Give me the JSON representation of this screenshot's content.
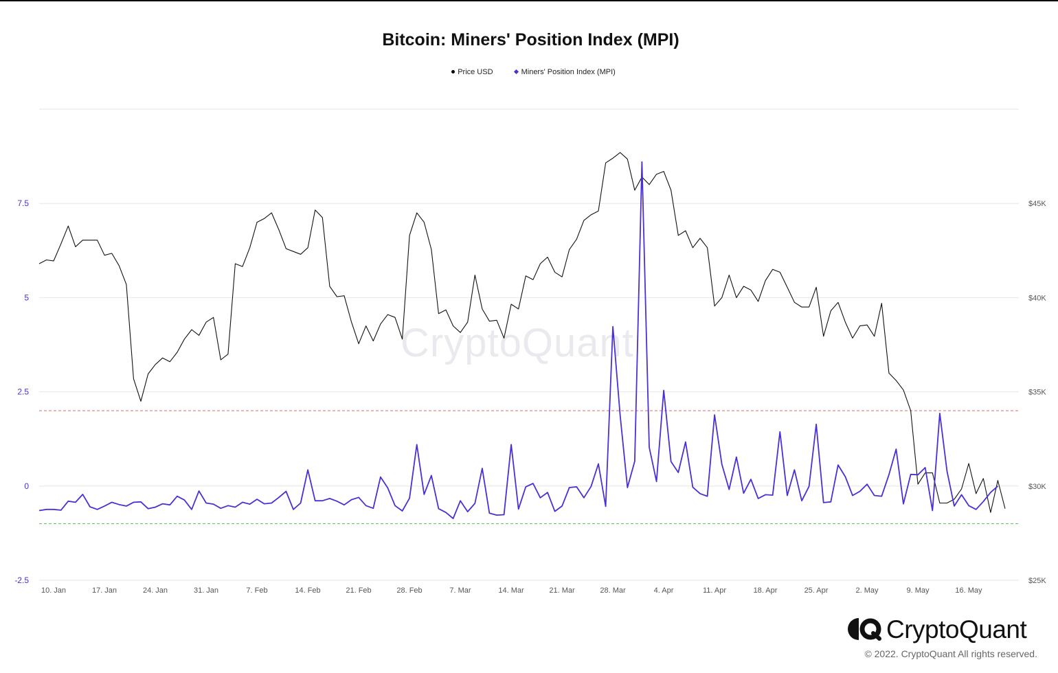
{
  "title": "Bitcoin: Miners' Position Index (MPI)",
  "legend": {
    "price_label": "Price USD",
    "mpi_label": "Miners' Position Index (MPI)"
  },
  "watermark": "CryptoQuant",
  "footer": {
    "logo_text": "CryptoQuant",
    "copyright": "© 2022. CryptoQuant All rights reserved."
  },
  "colors": {
    "price_line": "#111111",
    "mpi_line": "#4a2fd6",
    "left_axis_text": "#4a2fd6",
    "upper_threshold": "#e06666",
    "lower_threshold": "#57bb57",
    "grid": "#e6e6e6"
  },
  "chart_data": {
    "type": "line",
    "x_start_label": "10. Jan",
    "x_end_label": "16. May",
    "x_tick_labels": [
      "10. Jan",
      "17. Jan",
      "24. Jan",
      "31. Jan",
      "7. Feb",
      "14. Feb",
      "21. Feb",
      "28. Feb",
      "7. Mar",
      "14. Mar",
      "21. Mar",
      "28. Mar",
      "4. Apr",
      "11. Apr",
      "18. Apr",
      "25. Apr",
      "2. May",
      "9. May",
      "16. May"
    ],
    "y_left": {
      "ticks": [
        -2.5,
        0,
        2.5,
        5,
        7.5
      ],
      "tick_labels": [
        "-2.5",
        "0",
        "2.5",
        "5",
        "7.5"
      ],
      "range": [
        -2.5,
        10
      ]
    },
    "y_right": {
      "ticks": [
        25000,
        30000,
        35000,
        40000,
        45000
      ],
      "tick_labels": [
        "$25K",
        "$30K",
        "$35K",
        "$40K",
        "$45K"
      ],
      "range": [
        25000,
        50000
      ]
    },
    "thresholds": {
      "upper": 2,
      "lower": -1
    },
    "series": [
      {
        "name": "Price USD",
        "axis": "right",
        "values": [
          41800,
          42000,
          41950,
          42850,
          43800,
          42700,
          43050,
          43050,
          43050,
          42250,
          42350,
          41700,
          40700,
          35700,
          34500,
          35950,
          36450,
          36800,
          36600,
          37100,
          37800,
          38300,
          38000,
          38700,
          38950,
          36700,
          37000,
          41800,
          41650,
          42650,
          44000,
          44200,
          44500,
          43600,
          42600,
          42450,
          42300,
          42650,
          44650,
          44250,
          40600,
          40050,
          40100,
          38700,
          37550,
          38500,
          37700,
          38600,
          39100,
          38950,
          37800,
          43300,
          44500,
          44000,
          42550,
          39150,
          39350,
          38500,
          38150,
          38700,
          41200,
          39400,
          38750,
          38800,
          37850,
          39650,
          39400,
          41150,
          40950,
          41800,
          42150,
          41350,
          41100,
          42550,
          43100,
          44100,
          44400,
          44600,
          47150,
          47400,
          47700,
          47350,
          45700,
          46400,
          46000,
          46550,
          46700,
          45700,
          43300,
          43550,
          42650,
          43150,
          42650,
          39550,
          40000,
          41200,
          40000,
          40600,
          40400,
          39800,
          40900,
          41500,
          41350,
          40550,
          39750,
          39500,
          39500,
          40550,
          37950,
          39300,
          39750,
          38700,
          37850,
          38500,
          38550,
          37950,
          39700,
          36000,
          35600,
          35100,
          34000,
          30100,
          30700,
          30700,
          29100,
          29100,
          29300,
          29850,
          31200,
          29600,
          30400,
          28600,
          30300,
          28800
        ]
      },
      {
        "name": "Miners' Position Index (MPI)",
        "axis": "left",
        "values": [
          -0.65,
          -0.62,
          -0.62,
          -0.64,
          -0.4,
          -0.43,
          -0.22,
          -0.55,
          -0.62,
          -0.53,
          -0.43,
          -0.49,
          -0.53,
          -0.43,
          -0.42,
          -0.6,
          -0.56,
          -0.47,
          -0.5,
          -0.27,
          -0.37,
          -0.62,
          -0.13,
          -0.45,
          -0.48,
          -0.59,
          -0.52,
          -0.56,
          -0.43,
          -0.48,
          -0.35,
          -0.47,
          -0.45,
          -0.3,
          -0.14,
          -0.62,
          -0.45,
          0.43,
          -0.39,
          -0.39,
          -0.33,
          -0.4,
          -0.5,
          -0.36,
          -0.3,
          -0.52,
          -0.59,
          0.24,
          -0.05,
          -0.52,
          -0.66,
          -0.32,
          1.1,
          -0.22,
          0.28,
          -0.6,
          -0.7,
          -0.86,
          -0.39,
          -0.68,
          -0.46,
          0.47,
          -0.72,
          -0.77,
          -0.76,
          1.1,
          -0.61,
          -0.02,
          0.07,
          -0.31,
          -0.17,
          -0.67,
          -0.53,
          -0.04,
          -0.02,
          -0.31,
          -0.01,
          0.59,
          -0.54,
          4.23,
          1.87,
          -0.04,
          0.66,
          8.6,
          1.03,
          0.12,
          2.54,
          0.65,
          0.36,
          1.17,
          -0.03,
          -0.2,
          -0.27,
          1.89,
          0.58,
          -0.09,
          0.77,
          -0.19,
          0.18,
          -0.33,
          -0.23,
          -0.24,
          1.44,
          -0.25,
          0.43,
          -0.39,
          -0.01,
          1.64,
          -0.44,
          -0.42,
          0.56,
          0.25,
          -0.25,
          -0.14,
          0.05,
          -0.25,
          -0.27,
          0.3,
          0.98,
          -0.47,
          0.31,
          0.3,
          0.49,
          -0.65,
          1.93,
          0.4,
          -0.53,
          -0.23,
          -0.52,
          -0.62,
          -0.41,
          -0.17,
          0.0
        ]
      }
    ]
  }
}
